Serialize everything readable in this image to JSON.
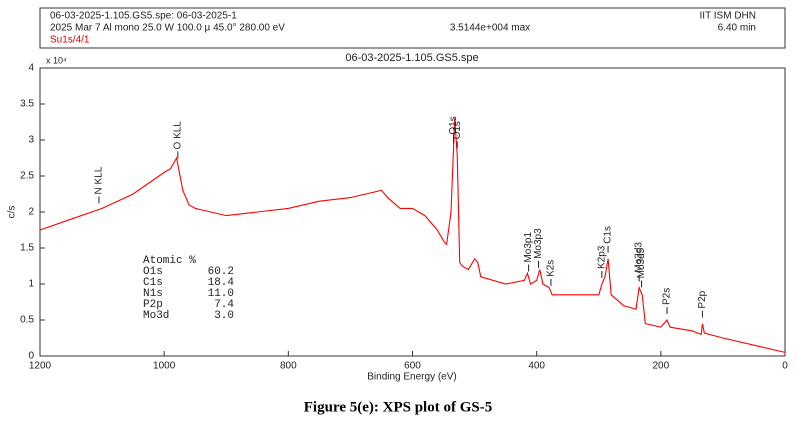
{
  "chart_data": {
    "type": "line",
    "header": {
      "file": "06-03-2025-1.105.GS5.spe: 06-03-2025-1",
      "site": "IIT ISM DHN",
      "params": "2025 Mar 7  Al mono  25.0 W  100.0 µ  45.0°  280.00 eV",
      "max": "3.5144e+004 max",
      "time": "6.40 min",
      "region": "Su1s/4/1"
    },
    "title": "06-03-2025-1.105.GS5.spe",
    "xlabel": "Binding Energy (eV)",
    "ylabel": "c/s",
    "y_exponent": "x 10⁴",
    "xlim": [
      1200,
      0
    ],
    "xticks": [
      1200,
      1000,
      800,
      600,
      400,
      200,
      0
    ],
    "ylim": [
      0,
      4
    ],
    "yticks": [
      0,
      0.5,
      1,
      1.5,
      2,
      2.5,
      3,
      3.5,
      4
    ],
    "series": [
      {
        "name": "GS-5",
        "color": "#ff0000",
        "x": [
          1200,
          1150,
          1100,
          1050,
          1000,
          990,
          980,
          970,
          960,
          950,
          900,
          850,
          800,
          750,
          700,
          650,
          640,
          620,
          600,
          580,
          560,
          550,
          545,
          538,
          532,
          528,
          524,
          520,
          510,
          500,
          495,
          490,
          450,
          420,
          415,
          410,
          400,
          395,
          390,
          380,
          375,
          350,
          300,
          295,
          290,
          285,
          280,
          260,
          240,
          235,
          230,
          225,
          200,
          195,
          190,
          185,
          150,
          135,
          133,
          130,
          100,
          50,
          0
        ],
        "values": [
          1.75,
          1.9,
          2.05,
          2.25,
          2.55,
          2.6,
          2.75,
          2.3,
          2.1,
          2.05,
          1.95,
          2.0,
          2.05,
          2.15,
          2.2,
          2.3,
          2.2,
          2.05,
          2.05,
          1.95,
          1.75,
          1.6,
          1.55,
          2.0,
          3.3,
          2.8,
          1.3,
          1.25,
          1.2,
          1.35,
          1.3,
          1.1,
          1.0,
          1.05,
          1.15,
          1.0,
          1.05,
          1.2,
          1.0,
          0.95,
          0.85,
          0.85,
          0.85,
          1.0,
          1.1,
          1.35,
          0.85,
          0.7,
          0.65,
          0.95,
          0.85,
          0.45,
          0.4,
          0.45,
          0.5,
          0.4,
          0.35,
          0.3,
          0.45,
          0.32,
          0.25,
          0.15,
          0.05
        ]
      }
    ],
    "peaks": [
      {
        "label": "N KLL",
        "x": 1105
      },
      {
        "label": "O KLL",
        "x": 978
      },
      {
        "label": "O1s",
        "x": 534
      },
      {
        "label": "O1s",
        "x": 528
      },
      {
        "label": "Mo3p1",
        "x": 413
      },
      {
        "label": "Mo3p3",
        "x": 397
      },
      {
        "label": "K2s",
        "x": 377
      },
      {
        "label": "K2p3",
        "x": 295
      },
      {
        "label": "C1s",
        "x": 285
      },
      {
        "label": "Mo3d3",
        "x": 235
      },
      {
        "label": "Mo3d5",
        "x": 231
      },
      {
        "label": "P2s",
        "x": 190
      },
      {
        "label": "P2p",
        "x": 133
      }
    ],
    "table": {
      "header": "Atomic %",
      "rows": [
        [
          "O1s",
          "60.2"
        ],
        [
          "C1s",
          "18.4"
        ],
        [
          "N1s",
          "11.0"
        ],
        [
          "P2p",
          "7.4"
        ],
        [
          "Mo3d",
          "3.0"
        ]
      ]
    },
    "caption": "Figure 5(e): XPS plot of GS-5"
  }
}
